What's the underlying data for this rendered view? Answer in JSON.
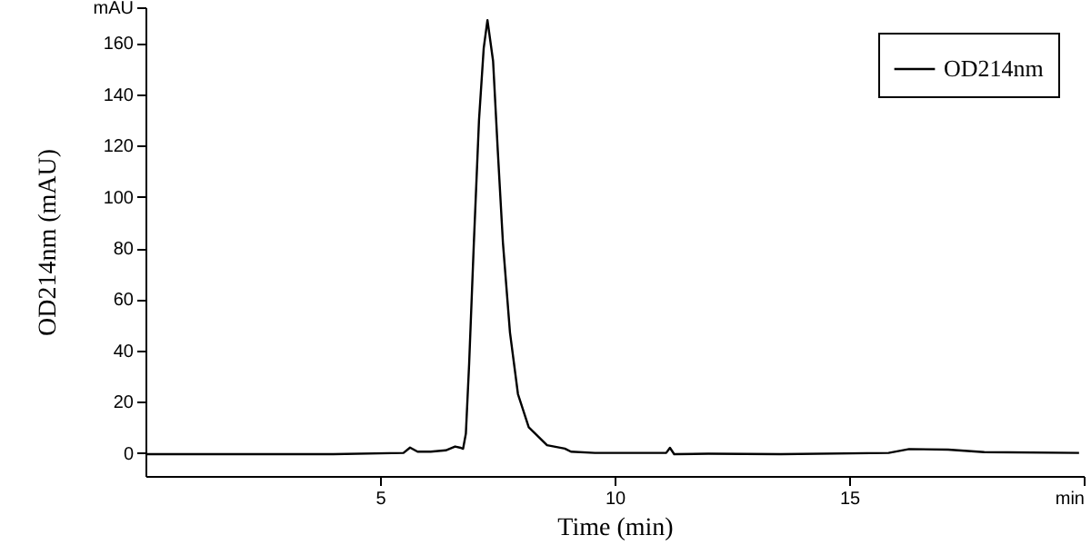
{
  "chart_data": {
    "type": "line",
    "xlabel": "Time (min)",
    "ylabel": "OD214nm (mAU)",
    "xlim": [
      0,
      20
    ],
    "xticks": [
      5,
      10,
      15,
      {
        "value": 20,
        "label": "min"
      }
    ],
    "ylim": [
      -9,
      174
    ],
    "yticks": [
      0,
      20,
      40,
      60,
      80,
      100,
      120,
      140,
      160,
      {
        "value": 174,
        "label": "mAU"
      }
    ],
    "grid": false,
    "legend": "top right",
    "marker": "none",
    "line_style": "solid",
    "series": [
      {
        "name": "OD214nm",
        "color": "#000000",
        "x": [
          0,
          2,
          4,
          5.5,
          5.64,
          5.8,
          6.08,
          6.4,
          6.6,
          6.72,
          6.77,
          6.83,
          6.9,
          7.0,
          7.11,
          7.21,
          7.29,
          7.41,
          7.51,
          7.62,
          7.77,
          7.94,
          8.17,
          8.56,
          8.94,
          9.07,
          9.58,
          10.5,
          11.1,
          11.18,
          11.27,
          12,
          13.54,
          15.84,
          16.28,
          17.11,
          17.88,
          19.9
        ],
        "values": [
          -0.5,
          -0.5,
          -0.5,
          0,
          2.1,
          0.5,
          0.5,
          1,
          2.5,
          2,
          1.6,
          7.6,
          35,
          82,
          130,
          158,
          169,
          153,
          118,
          82,
          47,
          23,
          10,
          3,
          1.7,
          0.5,
          0,
          0,
          0,
          2,
          -0.5,
          -0.3,
          -0.5,
          0,
          1.5,
          1.3,
          0.3,
          0
        ]
      }
    ]
  }
}
